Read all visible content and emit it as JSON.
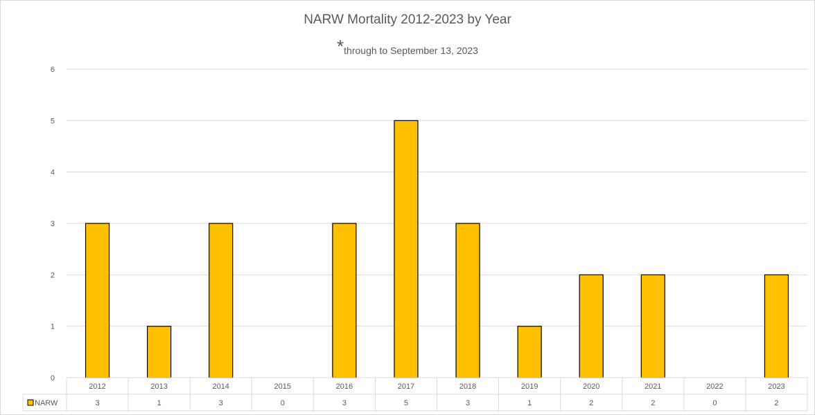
{
  "chart_data": {
    "type": "bar",
    "title": "NARW Mortality 2012-2023  by Year",
    "subtitle_mark": "*",
    "subtitle": "through to September 13, 2023",
    "categories": [
      "2012",
      "2013",
      "2014",
      "2015",
      "2016",
      "2017",
      "2018",
      "2019",
      "2020",
      "2021",
      "2022",
      "2023"
    ],
    "series": [
      {
        "name": "NARW",
        "values": [
          3,
          1,
          3,
          0,
          3,
          5,
          3,
          1,
          2,
          2,
          0,
          2
        ],
        "color": "#FFC000",
        "border": "#000000"
      }
    ],
    "ylim": [
      0,
      6
    ],
    "yticks": [
      0,
      1,
      2,
      3,
      4,
      5,
      6
    ],
    "grid": true,
    "legend": "data-table-left",
    "data_table": true
  }
}
